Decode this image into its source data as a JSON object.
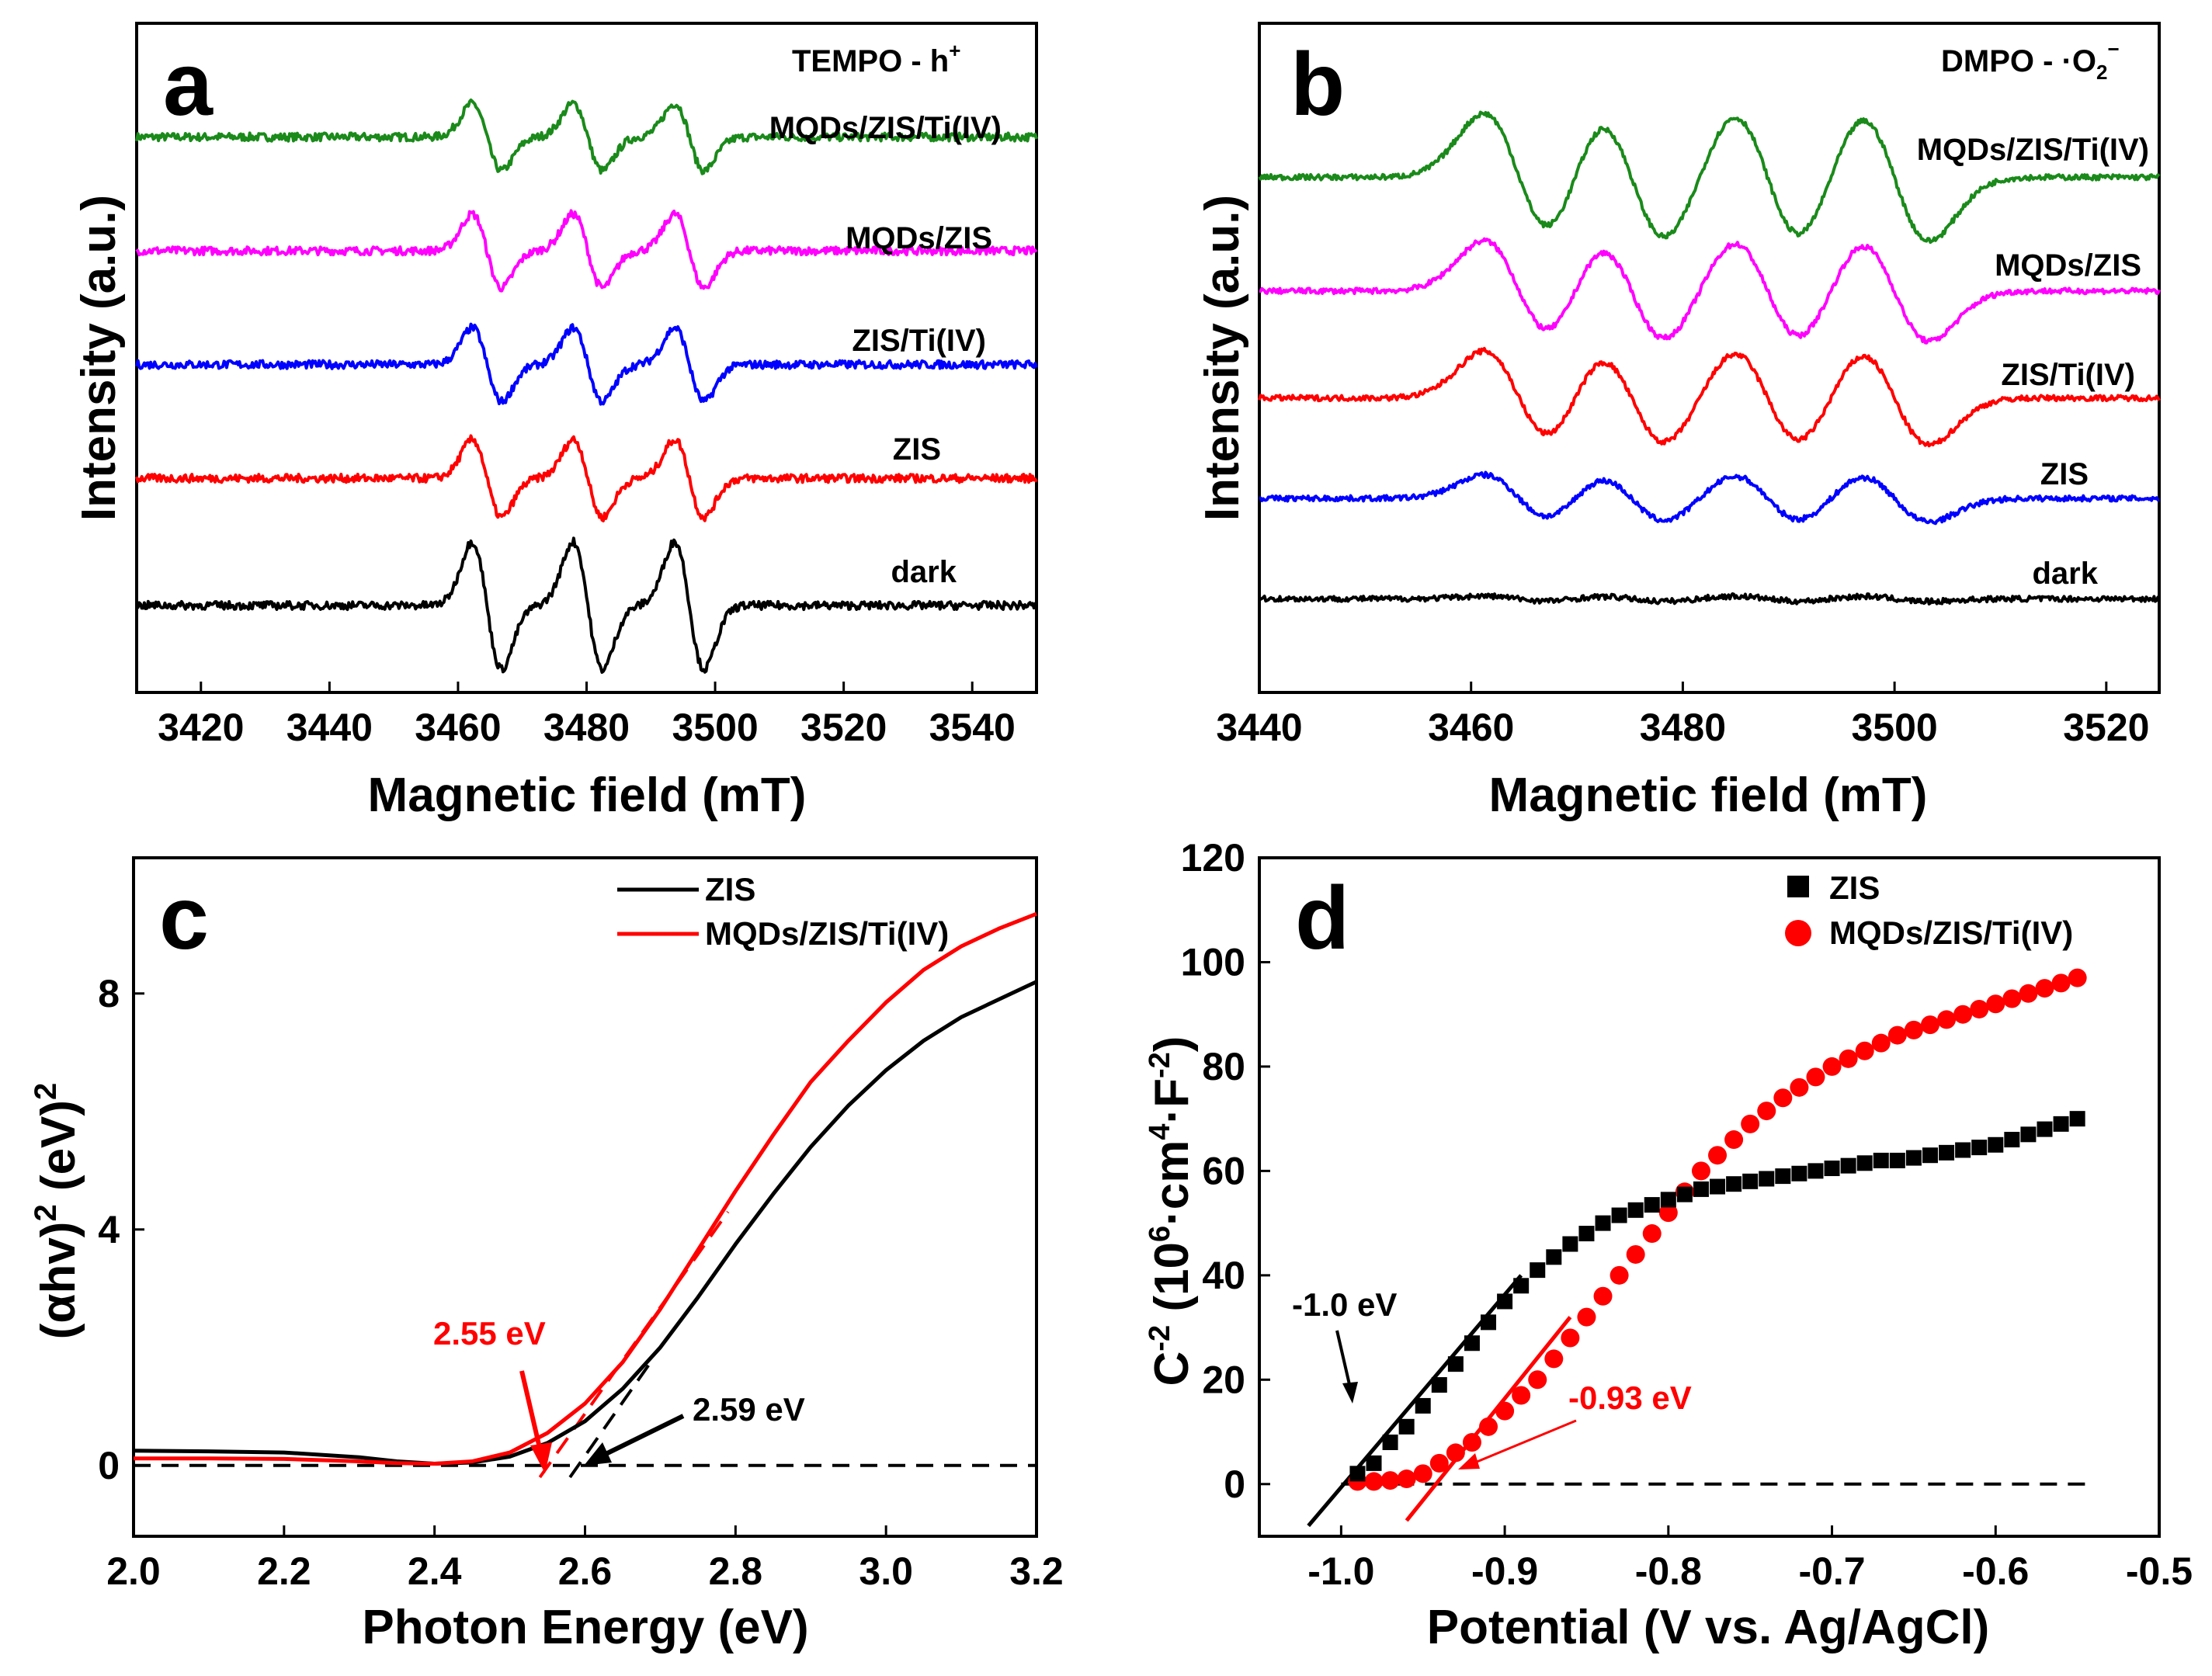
{
  "chart_data": [
    {
      "panel": "a",
      "type": "line",
      "title": "TEMPO - h+",
      "title_main": "TEMPO - h",
      "title_sup": "+",
      "xlabel": "Magnetic field (mT)",
      "ylabel": "Intensity (a.u.)",
      "xlim": [
        3410,
        3550
      ],
      "xticks": [
        "3420",
        "3440",
        "3460",
        "3480",
        "3500",
        "3520",
        "3540"
      ],
      "line_centers": [
        3464.5,
        3480.2,
        3496.0
      ],
      "series": [
        {
          "name": "MQDs/ZIS/Ti(IV)",
          "color": "#1a8a1a",
          "baseline": 0.83,
          "amplitude": 0.05
        },
        {
          "name": "MQDs/ZIS",
          "color": "#ff00ff",
          "baseline": 0.66,
          "amplitude": 0.055
        },
        {
          "name": "ZIS/Ti(IV)",
          "color": "#0000ff",
          "baseline": 0.49,
          "amplitude": 0.055
        },
        {
          "name": "ZIS",
          "color": "#ff0000",
          "baseline": 0.32,
          "amplitude": 0.058
        },
        {
          "name": "dark",
          "color": "#000000",
          "baseline": 0.13,
          "amplitude": 0.095
        }
      ]
    },
    {
      "panel": "b",
      "type": "line",
      "title": "DMPO - ·O2−",
      "title_main": "DMPO - ·O",
      "title_sub": "2",
      "title_sup": "−",
      "xlabel": "Magnetic field (mT)",
      "ylabel": "Intensity (a.u.)",
      "xlim": [
        3440,
        3525
      ],
      "xticks": [
        "3440",
        "3460",
        "3480",
        "3500",
        "3520"
      ],
      "line_centers": [
        3464.5,
        3475.2,
        3488.0,
        3500.0
      ],
      "series": [
        {
          "name": "MQDs/ZIS/Ti(IV)",
          "color": "#1a8a1a",
          "baseline": 0.77,
          "amplitude": 0.095
        },
        {
          "name": "MQDs/ZIS",
          "color": "#ff00ff",
          "baseline": 0.6,
          "amplitude": 0.075
        },
        {
          "name": "ZIS/Ti(IV)",
          "color": "#ff0000",
          "baseline": 0.44,
          "amplitude": 0.07
        },
        {
          "name": "ZIS",
          "color": "#0000ff",
          "baseline": 0.29,
          "amplitude": 0.035
        },
        {
          "name": "dark",
          "color": "#000000",
          "baseline": 0.14,
          "amplitude": 0.004
        }
      ]
    },
    {
      "panel": "c",
      "type": "line",
      "xlabel": "Photon Energy (eV)",
      "ylabel_main": "(αhv)",
      "ylabel_tail": "(eV)",
      "ylabel_sup": "2",
      "xlim": [
        2.0,
        3.2
      ],
      "ylim": [
        -1.2,
        10.3
      ],
      "xticks": [
        "2.0",
        "2.2",
        "2.4",
        "2.6",
        "2.8",
        "3.0",
        "3.2"
      ],
      "yticks": [
        "0",
        "4",
        "8"
      ],
      "series": [
        {
          "name": "ZIS",
          "color": "#000000",
          "x": [
            2.0,
            2.1,
            2.2,
            2.3,
            2.35,
            2.4,
            2.45,
            2.5,
            2.55,
            2.6,
            2.65,
            2.7,
            2.75,
            2.8,
            2.85,
            2.9,
            2.95,
            3.0,
            3.05,
            3.1,
            3.15,
            3.2
          ],
          "y": [
            0.25,
            0.24,
            0.22,
            0.14,
            0.07,
            0.03,
            0.05,
            0.15,
            0.38,
            0.75,
            1.3,
            2.0,
            2.85,
            3.75,
            4.6,
            5.4,
            6.1,
            6.7,
            7.2,
            7.6,
            7.9,
            8.2
          ]
        },
        {
          "name": "MQDs/ZIS/Ti(IV)",
          "color": "#ff0000",
          "x": [
            2.0,
            2.1,
            2.2,
            2.3,
            2.35,
            2.4,
            2.45,
            2.5,
            2.55,
            2.6,
            2.65,
            2.7,
            2.75,
            2.8,
            2.85,
            2.9,
            2.95,
            3.0,
            3.05,
            3.1,
            3.15,
            3.2
          ],
          "y": [
            0.12,
            0.12,
            0.11,
            0.07,
            0.04,
            0.03,
            0.07,
            0.22,
            0.55,
            1.05,
            1.75,
            2.65,
            3.65,
            4.65,
            5.6,
            6.5,
            7.2,
            7.85,
            8.4,
            8.8,
            9.1,
            9.35
          ]
        }
      ],
      "tangents": [
        {
          "color": "#000000",
          "x0": 2.58,
          "x1": 2.69,
          "y0": -0.2,
          "y1": 1.8
        },
        {
          "color": "#ff0000",
          "x0": 2.54,
          "x1": 2.79,
          "y0": -0.2,
          "y1": 4.3
        }
      ],
      "annotations": [
        {
          "text": "2.55 eV",
          "color": "#ff0000"
        },
        {
          "text": "2.59 eV",
          "color": "#000000"
        }
      ]
    },
    {
      "panel": "d",
      "type": "scatter",
      "xlabel": "Potential (V vs. Ag/AgCl)",
      "ylabel_main": "C",
      "ylabel_sup1": "-2",
      "ylabel_mid": " (10",
      "ylabel_sup2": "6",
      "ylabel_mid2": "·cm",
      "ylabel_sup3": "4",
      "ylabel_mid3": "·F",
      "ylabel_sup4": "-2",
      "ylabel_end": ")",
      "xlim": [
        -1.05,
        -0.5
      ],
      "ylim": [
        -10,
        120
      ],
      "xticks": [
        "-1.0",
        "-0.9",
        "-0.8",
        "-0.7",
        "-0.6",
        "-0.5"
      ],
      "yticks": [
        "0",
        "20",
        "40",
        "60",
        "80",
        "100",
        "120"
      ],
      "series": [
        {
          "name": "ZIS",
          "color": "#000000",
          "marker": "square",
          "x": [
            -0.99,
            -0.98,
            -0.97,
            -0.96,
            -0.95,
            -0.94,
            -0.93,
            -0.92,
            -0.91,
            -0.9,
            -0.89,
            -0.88,
            -0.87,
            -0.86,
            -0.85,
            -0.84,
            -0.83,
            -0.82,
            -0.81,
            -0.8,
            -0.79,
            -0.78,
            -0.77,
            -0.76,
            -0.75,
            -0.74,
            -0.73,
            -0.72,
            -0.71,
            -0.7,
            -0.69,
            -0.68,
            -0.67,
            -0.66,
            -0.65,
            -0.64,
            -0.63,
            -0.62,
            -0.61,
            -0.6,
            -0.59,
            -0.58,
            -0.57,
            -0.56,
            -0.55
          ],
          "y": [
            2,
            4,
            8,
            11,
            15,
            19,
            23,
            27,
            31,
            35,
            38,
            41,
            43.5,
            46,
            48,
            50,
            51.5,
            52.5,
            53.5,
            54.5,
            55.5,
            56.5,
            57,
            57.5,
            58,
            58.5,
            59,
            59.5,
            60,
            60.5,
            61,
            61.5,
            62,
            62,
            62.5,
            63,
            63.5,
            64,
            64.5,
            65,
            66,
            67,
            68,
            69,
            70
          ]
        },
        {
          "name": "MQDs/ZIS/Ti(IV)",
          "color": "#ff0000",
          "marker": "circle",
          "x": [
            -0.99,
            -0.98,
            -0.97,
            -0.96,
            -0.95,
            -0.94,
            -0.93,
            -0.92,
            -0.91,
            -0.9,
            -0.89,
            -0.88,
            -0.87,
            -0.86,
            -0.85,
            -0.84,
            -0.83,
            -0.82,
            -0.81,
            -0.8,
            -0.79,
            -0.78,
            -0.77,
            -0.76,
            -0.75,
            -0.74,
            -0.73,
            -0.72,
            -0.71,
            -0.7,
            -0.69,
            -0.68,
            -0.67,
            -0.66,
            -0.65,
            -0.64,
            -0.63,
            -0.62,
            -0.61,
            -0.6,
            -0.59,
            -0.58,
            -0.57,
            -0.56,
            -0.55
          ],
          "y": [
            0.5,
            0.5,
            0.7,
            1,
            2,
            4,
            6,
            8,
            11,
            14,
            17,
            20,
            24,
            28,
            32,
            36,
            40,
            44,
            48,
            52,
            56,
            60,
            63,
            66,
            69,
            71.5,
            74,
            76,
            78,
            80,
            81.5,
            83,
            84.5,
            86,
            87,
            88,
            89,
            90,
            91,
            92,
            93,
            94,
            95,
            96,
            97
          ]
        }
      ],
      "tangents": [
        {
          "color": "#000000",
          "x0": -1.02,
          "x1": -0.89,
          "y0": -8,
          "y1": 40
        },
        {
          "color": "#ff0000",
          "x0": -0.96,
          "x1": -0.86,
          "y0": -7,
          "y1": 32
        }
      ],
      "annotations": [
        {
          "text": "-1.0 eV",
          "color": "#000000"
        },
        {
          "text": "-0.93 eV",
          "color": "#ff0000"
        }
      ]
    }
  ]
}
